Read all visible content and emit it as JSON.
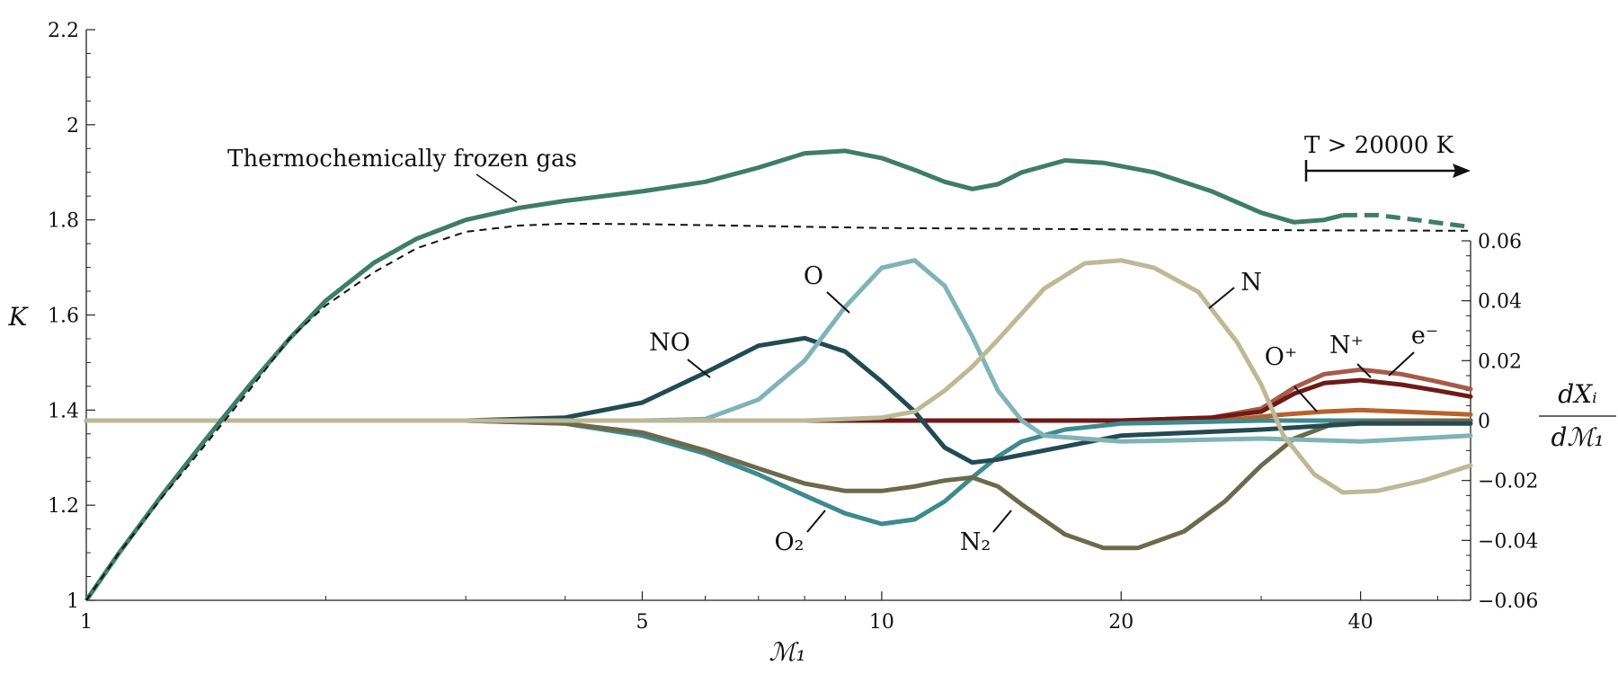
{
  "chart_data": {
    "type": "line",
    "x_scale": "log",
    "xlim": [
      1,
      55
    ],
    "x_ticks": [
      {
        "value": 1,
        "label": "1"
      },
      {
        "value": 5,
        "label": "5"
      },
      {
        "value": 10,
        "label": "10"
      },
      {
        "value": 20,
        "label": "20"
      },
      {
        "value": 40,
        "label": "40"
      }
    ],
    "xlabel": "ℳ₁",
    "left_axis": {
      "label": "K",
      "ylim": [
        1.0,
        2.2
      ],
      "ticks": [
        {
          "value": 1.0,
          "label": "1"
        },
        {
          "value": 1.2,
          "label": "1.2"
        },
        {
          "value": 1.4,
          "label": "1.4"
        },
        {
          "value": 1.6,
          "label": "1.6"
        },
        {
          "value": 1.8,
          "label": "1.8"
        },
        {
          "value": 2.0,
          "label": "2"
        },
        {
          "value": 2.2,
          "label": "2.2"
        }
      ]
    },
    "right_axis": {
      "label_num": "dXᵢ",
      "label_den": "dℳ₁",
      "ylim": [
        -0.06,
        0.06
      ],
      "ticks": [
        {
          "value": 0.06,
          "label": "0.06"
        },
        {
          "value": 0.04,
          "label": "0.04"
        },
        {
          "value": 0.02,
          "label": "0.02"
        },
        {
          "value": 0.0,
          "label": "0"
        },
        {
          "value": -0.02,
          "label": "−0.02"
        },
        {
          "value": -0.04,
          "label": "−0.04"
        },
        {
          "value": -0.06,
          "label": "−0.06"
        }
      ]
    },
    "grid": false,
    "K_series": [
      {
        "name": "K",
        "axis": "left",
        "color": "#3e7d6a",
        "points": [
          [
            1,
            1.0
          ],
          [
            1.1,
            1.1
          ],
          [
            1.25,
            1.225
          ],
          [
            1.4,
            1.33
          ],
          [
            1.6,
            1.45
          ],
          [
            1.8,
            1.55
          ],
          [
            2,
            1.63
          ],
          [
            2.3,
            1.71
          ],
          [
            2.6,
            1.76
          ],
          [
            3,
            1.8
          ],
          [
            3.5,
            1.825
          ],
          [
            4,
            1.84
          ],
          [
            5,
            1.86
          ],
          [
            6,
            1.88
          ],
          [
            7,
            1.91
          ],
          [
            8,
            1.94
          ],
          [
            9,
            1.945
          ],
          [
            10,
            1.93
          ],
          [
            11,
            1.905
          ],
          [
            12,
            1.88
          ],
          [
            13,
            1.865
          ],
          [
            14,
            1.875
          ],
          [
            15,
            1.9
          ],
          [
            17,
            1.925
          ],
          [
            19,
            1.92
          ],
          [
            22,
            1.9
          ],
          [
            26,
            1.86
          ],
          [
            30,
            1.815
          ],
          [
            33,
            1.795
          ],
          [
            36,
            1.8
          ],
          [
            38,
            1.81
          ]
        ],
        "dashed_tail": [
          [
            38,
            1.81
          ],
          [
            42,
            1.81
          ],
          [
            47,
            1.8
          ],
          [
            55,
            1.785
          ]
        ]
      },
      {
        "name": "Thermochemically frozen gas",
        "axis": "left",
        "color": "#111111",
        "dashed": true,
        "points": [
          [
            1,
            1.0
          ],
          [
            1.1,
            1.1
          ],
          [
            1.25,
            1.22
          ],
          [
            1.4,
            1.32
          ],
          [
            1.6,
            1.44
          ],
          [
            1.8,
            1.55
          ],
          [
            2,
            1.62
          ],
          [
            2.3,
            1.69
          ],
          [
            2.6,
            1.74
          ],
          [
            3,
            1.775
          ],
          [
            3.5,
            1.788
          ],
          [
            4,
            1.792
          ],
          [
            5,
            1.791
          ],
          [
            7,
            1.787
          ],
          [
            10,
            1.783
          ],
          [
            20,
            1.78
          ],
          [
            35,
            1.778
          ],
          [
            55,
            1.777
          ]
        ]
      }
    ],
    "species_series": [
      {
        "name": "NO",
        "label": "NO",
        "color": "#234a52",
        "points": [
          [
            1,
            0
          ],
          [
            3,
            0
          ],
          [
            4,
            0.001
          ],
          [
            5,
            0.006
          ],
          [
            6,
            0.016
          ],
          [
            7,
            0.025
          ],
          [
            8,
            0.0275
          ],
          [
            9,
            0.023
          ],
          [
            10,
            0.013
          ],
          [
            11,
            0.003
          ],
          [
            12,
            -0.009
          ],
          [
            13,
            -0.014
          ],
          [
            14,
            -0.013
          ],
          [
            16,
            -0.01
          ],
          [
            20,
            -0.005
          ],
          [
            30,
            -0.003
          ],
          [
            40,
            -0.001
          ],
          [
            55,
            -0.001
          ]
        ]
      },
      {
        "name": "O",
        "label": "O",
        "color": "#7fb3b8",
        "points": [
          [
            1,
            0
          ],
          [
            5,
            0
          ],
          [
            6,
            0.0005
          ],
          [
            7,
            0.007
          ],
          [
            8,
            0.02
          ],
          [
            9,
            0.038
          ],
          [
            10,
            0.051
          ],
          [
            11,
            0.0535
          ],
          [
            12,
            0.045
          ],
          [
            13,
            0.028
          ],
          [
            14,
            0.01
          ],
          [
            15,
            0.0
          ],
          [
            16,
            -0.005
          ],
          [
            20,
            -0.007
          ],
          [
            30,
            -0.006
          ],
          [
            40,
            -0.007
          ],
          [
            55,
            -0.005
          ]
        ]
      },
      {
        "name": "N",
        "label": "N",
        "color": "#bdb896",
        "points": [
          [
            1,
            0
          ],
          [
            8,
            0
          ],
          [
            10,
            0.001
          ],
          [
            11,
            0.003
          ],
          [
            12,
            0.01
          ],
          [
            13,
            0.018
          ],
          [
            14,
            0.027
          ],
          [
            16,
            0.044
          ],
          [
            18,
            0.0525
          ],
          [
            20,
            0.0535
          ],
          [
            22,
            0.051
          ],
          [
            25,
            0.043
          ],
          [
            28,
            0.026
          ],
          [
            30,
            0.012
          ],
          [
            32,
            -0.005
          ],
          [
            35,
            -0.018
          ],
          [
            38,
            -0.024
          ],
          [
            42,
            -0.0235
          ],
          [
            48,
            -0.02
          ],
          [
            55,
            -0.015
          ]
        ]
      },
      {
        "name": "N2",
        "label": "N₂",
        "color": "#6b6a4d",
        "points": [
          [
            1,
            0
          ],
          [
            3,
            0
          ],
          [
            4,
            -0.001
          ],
          [
            5,
            -0.004
          ],
          [
            6,
            -0.01
          ],
          [
            7,
            -0.016
          ],
          [
            8,
            -0.021
          ],
          [
            9,
            -0.0235
          ],
          [
            10,
            -0.0235
          ],
          [
            11,
            -0.022
          ],
          [
            12,
            -0.02
          ],
          [
            13,
            -0.019
          ],
          [
            14,
            -0.022
          ],
          [
            15,
            -0.028
          ],
          [
            17,
            -0.038
          ],
          [
            19,
            -0.0425
          ],
          [
            21,
            -0.0425
          ],
          [
            24,
            -0.037
          ],
          [
            27,
            -0.027
          ],
          [
            30,
            -0.015
          ],
          [
            33,
            -0.006
          ],
          [
            37,
            -0.001
          ],
          [
            45,
            0.0
          ],
          [
            55,
            0.0
          ]
        ]
      },
      {
        "name": "O2",
        "label": "O₂",
        "color": "#3d8a8f",
        "points": [
          [
            1,
            0
          ],
          [
            3,
            0
          ],
          [
            4,
            -0.001
          ],
          [
            5,
            -0.005
          ],
          [
            6,
            -0.011
          ],
          [
            7,
            -0.018
          ],
          [
            8,
            -0.025
          ],
          [
            9,
            -0.031
          ],
          [
            10,
            -0.0345
          ],
          [
            11,
            -0.033
          ],
          [
            12,
            -0.027
          ],
          [
            13,
            -0.019
          ],
          [
            14,
            -0.012
          ],
          [
            15,
            -0.007
          ],
          [
            17,
            -0.003
          ],
          [
            20,
            -0.001
          ],
          [
            30,
            0.0
          ],
          [
            55,
            0.0
          ]
        ]
      },
      {
        "name": "N+",
        "label": "N⁺",
        "color": "#a85a4a",
        "points": [
          [
            1,
            0
          ],
          [
            20,
            0
          ],
          [
            26,
            0.001
          ],
          [
            30,
            0.004
          ],
          [
            33,
            0.011
          ],
          [
            36,
            0.0155
          ],
          [
            40,
            0.017
          ],
          [
            45,
            0.0155
          ],
          [
            50,
            0.013
          ],
          [
            55,
            0.0105
          ]
        ]
      },
      {
        "name": "e-",
        "label": "e⁻",
        "color": "#6e1a17",
        "points": [
          [
            1,
            0
          ],
          [
            20,
            0
          ],
          [
            26,
            0.001
          ],
          [
            30,
            0.003
          ],
          [
            33,
            0.009
          ],
          [
            36,
            0.0125
          ],
          [
            40,
            0.0135
          ],
          [
            45,
            0.012
          ],
          [
            50,
            0.01
          ],
          [
            55,
            0.008
          ]
        ]
      },
      {
        "name": "O+",
        "label": "O⁺",
        "color": "#b8622b",
        "points": [
          [
            1,
            0
          ],
          [
            22,
            0
          ],
          [
            28,
            0.0005
          ],
          [
            32,
            0.002
          ],
          [
            36,
            0.003
          ],
          [
            40,
            0.0035
          ],
          [
            45,
            0.003
          ],
          [
            55,
            0.002
          ]
        ]
      },
      {
        "name": "baseline",
        "label": "",
        "color": "#b55a4e",
        "points": [
          [
            1,
            0
          ],
          [
            55,
            0
          ]
        ]
      }
    ],
    "annotations": {
      "frozen_gas": "Thermochemically frozen gas",
      "temperature": "T > 20000 K"
    }
  }
}
